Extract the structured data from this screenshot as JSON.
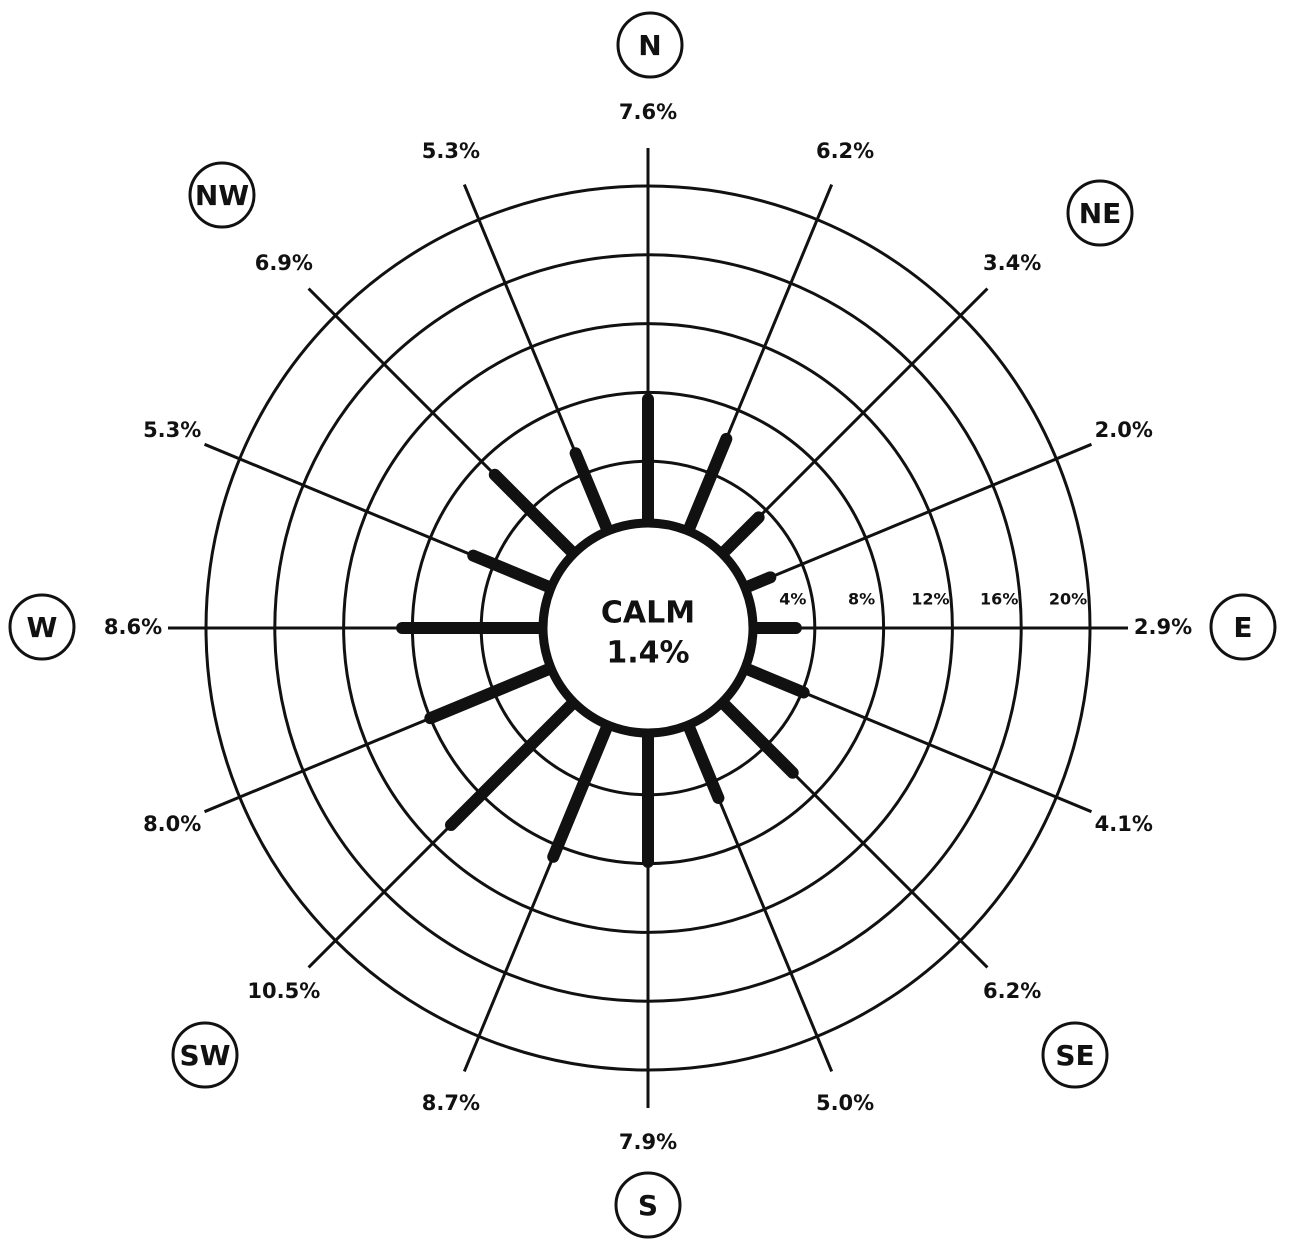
{
  "chart_data": {
    "type": "windrose",
    "compass": [
      "N",
      "NE",
      "E",
      "SE",
      "S",
      "SW",
      "W",
      "NW"
    ],
    "values": [
      7.6,
      6.2,
      3.4,
      2.0,
      2.9,
      4.1,
      6.2,
      5.0,
      7.9,
      8.7,
      10.5,
      8.0,
      8.6,
      5.3,
      6.9,
      5.3
    ],
    "value_labels": [
      "7.6%",
      "6.2%",
      "3.4%",
      "2.0%",
      "2.9%",
      "4.1%",
      "6.2%",
      "5.0%",
      "7.9%",
      "8.7%",
      "10.5%",
      "8.0%",
      "8.6%",
      "5.3%",
      "6.9%",
      "5.3%"
    ],
    "calm_label": "CALM",
    "calm": 1.4,
    "calm_value_label": "1.4%",
    "rlim": [
      0,
      20
    ],
    "rticks": [
      {
        "value": 4,
        "label": "4%"
      },
      {
        "value": 8,
        "label": "8%"
      },
      {
        "value": 12,
        "label": "12%"
      },
      {
        "value": 16,
        "label": "16%"
      },
      {
        "value": 20,
        "label": "20%"
      }
    ],
    "color": "#111111"
  }
}
